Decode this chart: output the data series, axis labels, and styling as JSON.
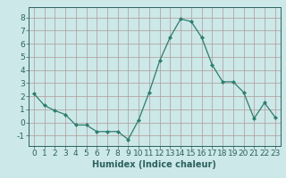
{
  "x": [
    0,
    1,
    2,
    3,
    4,
    5,
    6,
    7,
    8,
    9,
    10,
    11,
    12,
    13,
    14,
    15,
    16,
    17,
    18,
    19,
    20,
    21,
    22,
    23
  ],
  "y": [
    2.2,
    1.3,
    0.9,
    0.6,
    -0.2,
    -0.2,
    -0.7,
    -0.7,
    -0.7,
    -1.3,
    0.2,
    2.3,
    4.7,
    6.5,
    7.9,
    7.7,
    6.5,
    4.4,
    3.1,
    3.1,
    2.3,
    0.3,
    1.5,
    0.4
  ],
  "xlabel": "Humidex (Indice chaleur)",
  "ylim": [
    -1.8,
    8.8
  ],
  "xlim": [
    -0.5,
    23.5
  ],
  "yticks": [
    -1,
    0,
    1,
    2,
    3,
    4,
    5,
    6,
    7,
    8
  ],
  "xticks": [
    0,
    1,
    2,
    3,
    4,
    5,
    6,
    7,
    8,
    9,
    10,
    11,
    12,
    13,
    14,
    15,
    16,
    17,
    18,
    19,
    20,
    21,
    22,
    23
  ],
  "line_color": "#2d7d6e",
  "marker": "D",
  "marker_size": 2.0,
  "bg_color": "#cce8e8",
  "grid_color": "#b09898",
  "tick_label_color": "#2d6060",
  "xlabel_color": "#2d6060",
  "font_size": 6.5
}
